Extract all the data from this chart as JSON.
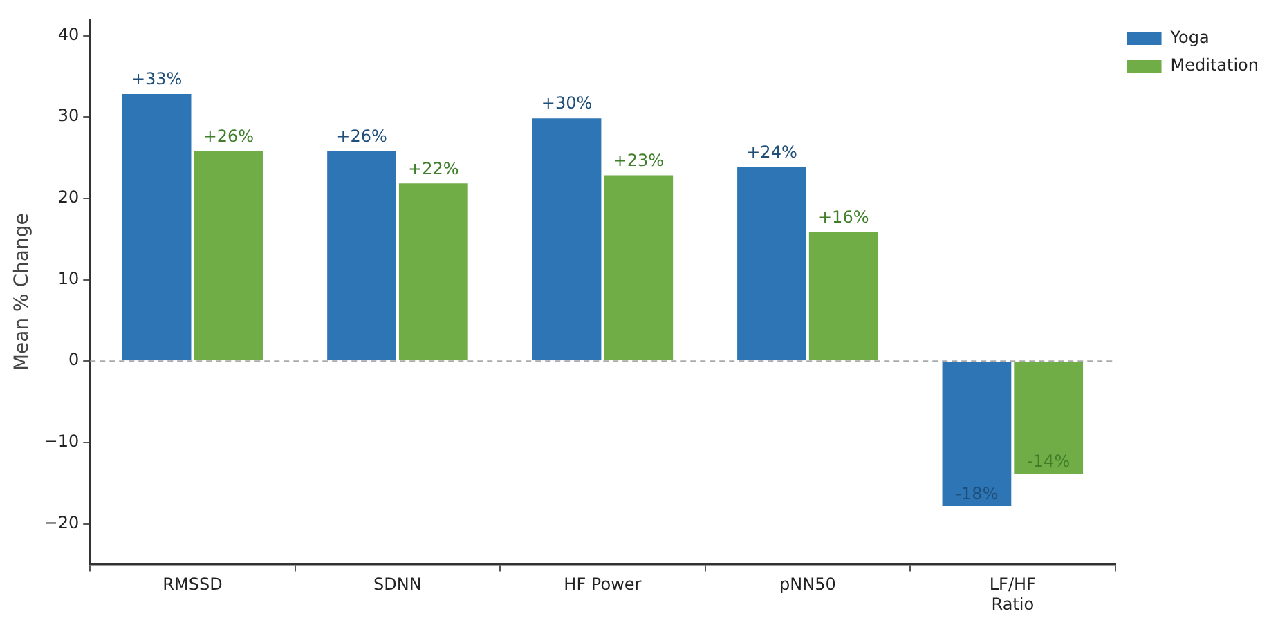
{
  "chart_data": {
    "type": "bar",
    "ylabel": "Mean % Change",
    "categories": [
      "RMSSD",
      "SDNN",
      "HF Power",
      "pNN50",
      "LF/HF\nRatio"
    ],
    "series": [
      {
        "name": "Yoga",
        "color": "#2e75b6",
        "values": [
          33,
          26,
          30,
          24,
          -18
        ],
        "value_labels": [
          "+33%",
          "+26%",
          "+30%",
          "+24%",
          "-18%"
        ]
      },
      {
        "name": "Meditation",
        "color": "#70ad47",
        "values": [
          26,
          22,
          23,
          16,
          -14
        ],
        "value_labels": [
          "+26%",
          "+22%",
          "+23%",
          "+16%",
          "-14%"
        ]
      }
    ],
    "ylim": [
      -25,
      42
    ],
    "yticks": [
      -20,
      -10,
      0,
      10,
      20,
      30,
      40
    ],
    "grid": false,
    "legend": "top right",
    "ref_lines": [
      {
        "axis": "y",
        "value": 0,
        "color": "#aaaaaa",
        "line_style": "dashed"
      }
    ]
  }
}
